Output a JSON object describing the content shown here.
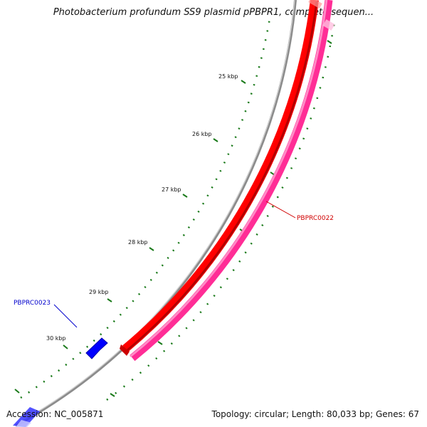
{
  "title": "Photobacterium profundum SS9 plasmid pPBPR1, complete sequen...",
  "accession_text": "Accession: NC_005871",
  "topology_text": "Topology: circular; Length: 80,033 bp; Genes: 67",
  "scale": {
    "labels": [
      {
        "kbp": 25,
        "text": "25 kbp"
      },
      {
        "kbp": 26,
        "text": "26 kbp"
      },
      {
        "kbp": 27,
        "text": "27 kbp"
      },
      {
        "kbp": 28,
        "text": "28 kbp"
      },
      {
        "kbp": 29,
        "text": "29 kbp"
      },
      {
        "kbp": 30,
        "text": "30 kbp"
      }
    ]
  },
  "genes": [
    {
      "name": "PBPRC0022",
      "label": "PBPRC0022",
      "color": "#d00000",
      "strand": "forward"
    },
    {
      "name": "PBPRC0023",
      "label": "PBPRC0023",
      "color": "#0000cc",
      "strand": "reverse"
    }
  ],
  "colors": {
    "backbone": "#8c8c8c",
    "cds_forward": "#ff0000",
    "cds_pink": "#ff3399",
    "cds_reverse": "#0000ff",
    "ticks": "#1a7a1a"
  }
}
